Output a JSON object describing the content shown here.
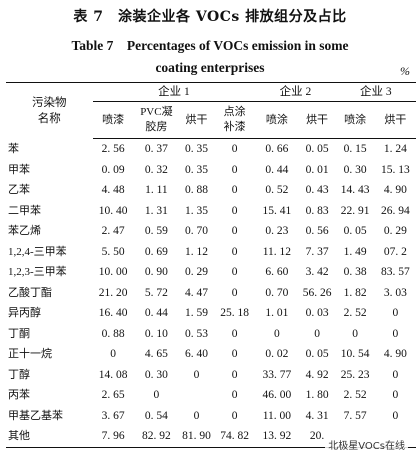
{
  "title_cn": "表 7　涂装企业各 VOCs 排放组分及占比",
  "title_en_line1": "Table 7　Percentages of VOCs emission in some",
  "title_en_line2": "coating enterprises",
  "unit": "%",
  "header": {
    "pollutant": "污染物名称",
    "enterprise1": "企业 1",
    "enterprise2": "企业 2",
    "enterprise3": "企业 3",
    "e1_cols": [
      "喷漆",
      "PVC凝胶房",
      "烘干",
      "点涂补漆"
    ],
    "e2_cols": [
      "喷涂",
      "烘干"
    ],
    "e3_cols": [
      "喷涂",
      "烘干"
    ]
  },
  "rows": [
    {
      "name": "苯",
      "v": [
        "2. 56",
        "0. 37",
        "0. 35",
        "0",
        "0. 66",
        "0. 05",
        "0. 15",
        "1. 24"
      ]
    },
    {
      "name": "甲苯",
      "v": [
        "0. 09",
        "0. 32",
        "0. 35",
        "0",
        "0. 44",
        "0. 01",
        "0. 30",
        "15. 13"
      ]
    },
    {
      "name": "乙苯",
      "v": [
        "4. 48",
        "1. 11",
        "0. 88",
        "0",
        "0. 52",
        "0. 43",
        "14. 43",
        "4. 90"
      ]
    },
    {
      "name": "二甲苯",
      "v": [
        "10. 40",
        "1. 31",
        "1. 35",
        "0",
        "15. 41",
        "0. 83",
        "22. 91",
        "26. 94"
      ]
    },
    {
      "name": "苯乙烯",
      "v": [
        "2. 47",
        "0. 59",
        "0. 70",
        "0",
        "0. 23",
        "0. 56",
        "0. 05",
        "0. 29"
      ]
    },
    {
      "name": "1,2,4-三甲苯",
      "v": [
        "5. 50",
        "0. 69",
        "1. 12",
        "0",
        "11. 12",
        "7. 37",
        "1. 49",
        "07. 2"
      ]
    },
    {
      "name": "1,2,3-三甲苯",
      "v": [
        "10. 00",
        "0. 90",
        "0. 29",
        "0",
        "6. 60",
        "3. 42",
        "0. 38",
        "83. 57"
      ]
    },
    {
      "name": "乙酸丁酯",
      "v": [
        "21. 20",
        "5. 72",
        "4. 47",
        "0",
        "0. 70",
        "56. 26",
        "1. 82",
        "3. 03"
      ]
    },
    {
      "name": "异丙醇",
      "v": [
        "16. 40",
        "0. 44",
        "1. 59",
        "25. 18",
        "1. 01",
        "0. 03",
        "2. 52",
        "0"
      ]
    },
    {
      "name": "丁酮",
      "v": [
        "0. 88",
        "0. 10",
        "0. 53",
        "0",
        "0",
        "0",
        "0",
        "0"
      ]
    },
    {
      "name": "正十一烷",
      "v": [
        "0",
        "4. 65",
        "6. 40",
        "0",
        "0. 02",
        "0. 05",
        "10. 54",
        "4. 90"
      ]
    },
    {
      "name": "丁醇",
      "v": [
        "14. 08",
        "0. 30",
        "0",
        "0",
        "33. 77",
        "4. 92",
        "25. 23",
        "0"
      ]
    },
    {
      "name": "丙苯",
      "v": [
        "2. 65",
        "0",
        "",
        "0",
        "46. 00",
        "1. 80",
        "2. 52",
        "0"
      ]
    },
    {
      "name": "甲基乙基苯",
      "v": [
        "3. 67",
        "0. 54",
        "0",
        "0",
        "11. 00",
        "4. 31",
        "7. 57",
        "0"
      ]
    },
    {
      "name": "其他",
      "v": [
        "7. 96",
        "82. 92",
        "81. 90",
        "74. 82",
        "13. 92",
        "20.",
        "",
        ""
      ]
    }
  ],
  "watermark": "北极星VOCs在线"
}
